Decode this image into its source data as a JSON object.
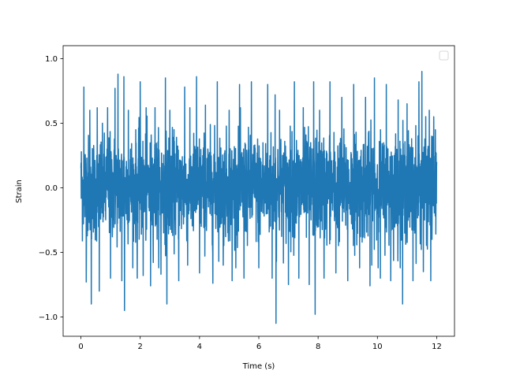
{
  "chart_data": {
    "type": "line",
    "title": "",
    "xlabel": "Time (s)",
    "ylabel": "Strain",
    "xlim": [
      -0.6,
      12.6
    ],
    "ylim": [
      -1.15,
      1.1
    ],
    "x_ticks": [
      0,
      2,
      4,
      6,
      8,
      10,
      12
    ],
    "x_tick_labels": [
      "0",
      "2",
      "4",
      "6",
      "8",
      "10",
      "12"
    ],
    "y_ticks": [
      -1.0,
      -0.5,
      0.0,
      0.5,
      1.0
    ],
    "y_tick_labels": [
      "−1.0",
      "−0.5",
      "0.0",
      "0.5",
      "1.0"
    ],
    "grid": false,
    "legend": {
      "position": "top-right",
      "entries": []
    },
    "series": [
      {
        "color": "#1f77b4",
        "x_range": [
          0,
          12
        ],
        "values_note_points": [
          [
            0.0,
            0.15
          ],
          [
            0.1,
            0.78
          ],
          [
            0.18,
            -0.73
          ],
          [
            0.3,
            0.6
          ],
          [
            0.35,
            -0.9
          ],
          [
            0.55,
            0.62
          ],
          [
            0.62,
            -0.8
          ],
          [
            0.9,
            0.62
          ],
          [
            1.0,
            -0.7
          ],
          [
            1.15,
            0.77
          ],
          [
            1.25,
            0.88
          ],
          [
            1.38,
            -0.72
          ],
          [
            1.45,
            0.86
          ],
          [
            1.47,
            -0.95
          ],
          [
            1.6,
            0.6
          ],
          [
            1.9,
            -0.7
          ],
          [
            2.0,
            0.82
          ],
          [
            2.1,
            -0.68
          ],
          [
            2.2,
            0.62
          ],
          [
            2.35,
            -0.76
          ],
          [
            2.5,
            0.62
          ],
          [
            2.7,
            -0.67
          ],
          [
            2.85,
            0.85
          ],
          [
            2.9,
            -0.9
          ],
          [
            3.0,
            0.6
          ],
          [
            3.3,
            -0.72
          ],
          [
            3.5,
            0.78
          ],
          [
            3.6,
            -0.6
          ],
          [
            3.9,
            0.86
          ],
          [
            4.0,
            -0.66
          ],
          [
            4.2,
            0.64
          ],
          [
            4.45,
            -0.74
          ],
          [
            4.6,
            0.82
          ],
          [
            4.8,
            -0.6
          ],
          [
            5.0,
            0.6
          ],
          [
            5.1,
            -0.72
          ],
          [
            5.35,
            0.8
          ],
          [
            5.5,
            -0.7
          ],
          [
            5.75,
            0.82
          ],
          [
            6.0,
            -0.62
          ],
          [
            6.3,
            0.8
          ],
          [
            6.45,
            -0.7
          ],
          [
            6.55,
            0.72
          ],
          [
            6.58,
            -1.05
          ],
          [
            6.7,
            0.6
          ],
          [
            7.0,
            -0.75
          ],
          [
            7.2,
            0.82
          ],
          [
            7.35,
            -0.7
          ],
          [
            7.5,
            0.62
          ],
          [
            7.7,
            -0.75
          ],
          [
            7.85,
            0.82
          ],
          [
            7.9,
            -0.98
          ],
          [
            8.05,
            0.6
          ],
          [
            8.2,
            -0.7
          ],
          [
            8.4,
            0.82
          ],
          [
            8.6,
            -0.66
          ],
          [
            8.8,
            0.7
          ],
          [
            9.0,
            -0.72
          ],
          [
            9.2,
            0.8
          ],
          [
            9.4,
            -0.62
          ],
          [
            9.6,
            0.7
          ],
          [
            9.75,
            -0.76
          ],
          [
            9.9,
            0.85
          ],
          [
            10.1,
            -0.7
          ],
          [
            10.3,
            0.8
          ],
          [
            10.45,
            -0.72
          ],
          [
            10.7,
            0.68
          ],
          [
            10.85,
            -0.9
          ],
          [
            11.0,
            0.65
          ],
          [
            11.2,
            -0.72
          ],
          [
            11.4,
            0.82
          ],
          [
            11.5,
            0.9
          ],
          [
            11.55,
            -0.65
          ],
          [
            11.75,
            0.6
          ],
          [
            11.8,
            -0.72
          ],
          [
            11.9,
            0.55
          ],
          [
            12.0,
            0.2
          ]
        ]
      }
    ]
  }
}
